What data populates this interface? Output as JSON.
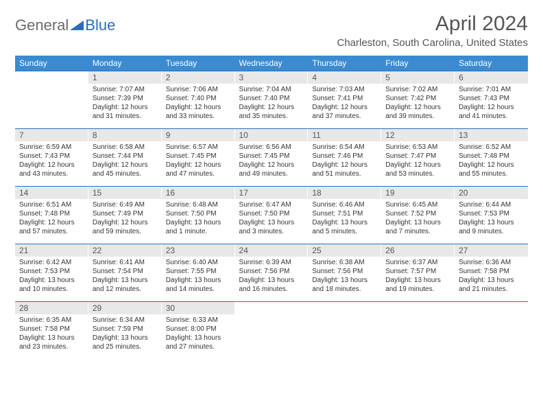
{
  "logo": {
    "part1": "General",
    "part2": "Blue"
  },
  "title": "April 2024",
  "location": "Charleston, South Carolina, United States",
  "colors": {
    "header_bg": "#3b8bd1",
    "header_text": "#ffffff",
    "daynum_bg": "#e8e8e8",
    "border": "#2a6eb8",
    "logo_blue": "#2a6eb8",
    "text": "#333333"
  },
  "day_headers": [
    "Sunday",
    "Monday",
    "Tuesday",
    "Wednesday",
    "Thursday",
    "Friday",
    "Saturday"
  ],
  "weeks": [
    [
      null,
      {
        "n": "1",
        "sr": "Sunrise: 7:07 AM",
        "ss": "Sunset: 7:39 PM",
        "dl": "Daylight: 12 hours and 31 minutes."
      },
      {
        "n": "2",
        "sr": "Sunrise: 7:06 AM",
        "ss": "Sunset: 7:40 PM",
        "dl": "Daylight: 12 hours and 33 minutes."
      },
      {
        "n": "3",
        "sr": "Sunrise: 7:04 AM",
        "ss": "Sunset: 7:40 PM",
        "dl": "Daylight: 12 hours and 35 minutes."
      },
      {
        "n": "4",
        "sr": "Sunrise: 7:03 AM",
        "ss": "Sunset: 7:41 PM",
        "dl": "Daylight: 12 hours and 37 minutes."
      },
      {
        "n": "5",
        "sr": "Sunrise: 7:02 AM",
        "ss": "Sunset: 7:42 PM",
        "dl": "Daylight: 12 hours and 39 minutes."
      },
      {
        "n": "6",
        "sr": "Sunrise: 7:01 AM",
        "ss": "Sunset: 7:43 PM",
        "dl": "Daylight: 12 hours and 41 minutes."
      }
    ],
    [
      {
        "n": "7",
        "sr": "Sunrise: 6:59 AM",
        "ss": "Sunset: 7:43 PM",
        "dl": "Daylight: 12 hours and 43 minutes."
      },
      {
        "n": "8",
        "sr": "Sunrise: 6:58 AM",
        "ss": "Sunset: 7:44 PM",
        "dl": "Daylight: 12 hours and 45 minutes."
      },
      {
        "n": "9",
        "sr": "Sunrise: 6:57 AM",
        "ss": "Sunset: 7:45 PM",
        "dl": "Daylight: 12 hours and 47 minutes."
      },
      {
        "n": "10",
        "sr": "Sunrise: 6:56 AM",
        "ss": "Sunset: 7:45 PM",
        "dl": "Daylight: 12 hours and 49 minutes."
      },
      {
        "n": "11",
        "sr": "Sunrise: 6:54 AM",
        "ss": "Sunset: 7:46 PM",
        "dl": "Daylight: 12 hours and 51 minutes."
      },
      {
        "n": "12",
        "sr": "Sunrise: 6:53 AM",
        "ss": "Sunset: 7:47 PM",
        "dl": "Daylight: 12 hours and 53 minutes."
      },
      {
        "n": "13",
        "sr": "Sunrise: 6:52 AM",
        "ss": "Sunset: 7:48 PM",
        "dl": "Daylight: 12 hours and 55 minutes."
      }
    ],
    [
      {
        "n": "14",
        "sr": "Sunrise: 6:51 AM",
        "ss": "Sunset: 7:48 PM",
        "dl": "Daylight: 12 hours and 57 minutes."
      },
      {
        "n": "15",
        "sr": "Sunrise: 6:49 AM",
        "ss": "Sunset: 7:49 PM",
        "dl": "Daylight: 12 hours and 59 minutes."
      },
      {
        "n": "16",
        "sr": "Sunrise: 6:48 AM",
        "ss": "Sunset: 7:50 PM",
        "dl": "Daylight: 13 hours and 1 minute."
      },
      {
        "n": "17",
        "sr": "Sunrise: 6:47 AM",
        "ss": "Sunset: 7:50 PM",
        "dl": "Daylight: 13 hours and 3 minutes."
      },
      {
        "n": "18",
        "sr": "Sunrise: 6:46 AM",
        "ss": "Sunset: 7:51 PM",
        "dl": "Daylight: 13 hours and 5 minutes."
      },
      {
        "n": "19",
        "sr": "Sunrise: 6:45 AM",
        "ss": "Sunset: 7:52 PM",
        "dl": "Daylight: 13 hours and 7 minutes."
      },
      {
        "n": "20",
        "sr": "Sunrise: 6:44 AM",
        "ss": "Sunset: 7:53 PM",
        "dl": "Daylight: 13 hours and 9 minutes."
      }
    ],
    [
      {
        "n": "21",
        "sr": "Sunrise: 6:42 AM",
        "ss": "Sunset: 7:53 PM",
        "dl": "Daylight: 13 hours and 10 minutes."
      },
      {
        "n": "22",
        "sr": "Sunrise: 6:41 AM",
        "ss": "Sunset: 7:54 PM",
        "dl": "Daylight: 13 hours and 12 minutes."
      },
      {
        "n": "23",
        "sr": "Sunrise: 6:40 AM",
        "ss": "Sunset: 7:55 PM",
        "dl": "Daylight: 13 hours and 14 minutes."
      },
      {
        "n": "24",
        "sr": "Sunrise: 6:39 AM",
        "ss": "Sunset: 7:56 PM",
        "dl": "Daylight: 13 hours and 16 minutes."
      },
      {
        "n": "25",
        "sr": "Sunrise: 6:38 AM",
        "ss": "Sunset: 7:56 PM",
        "dl": "Daylight: 13 hours and 18 minutes."
      },
      {
        "n": "26",
        "sr": "Sunrise: 6:37 AM",
        "ss": "Sunset: 7:57 PM",
        "dl": "Daylight: 13 hours and 19 minutes."
      },
      {
        "n": "27",
        "sr": "Sunrise: 6:36 AM",
        "ss": "Sunset: 7:58 PM",
        "dl": "Daylight: 13 hours and 21 minutes."
      }
    ],
    [
      {
        "n": "28",
        "sr": "Sunrise: 6:35 AM",
        "ss": "Sunset: 7:58 PM",
        "dl": "Daylight: 13 hours and 23 minutes."
      },
      {
        "n": "29",
        "sr": "Sunrise: 6:34 AM",
        "ss": "Sunset: 7:59 PM",
        "dl": "Daylight: 13 hours and 25 minutes."
      },
      {
        "n": "30",
        "sr": "Sunrise: 6:33 AM",
        "ss": "Sunset: 8:00 PM",
        "dl": "Daylight: 13 hours and 27 minutes."
      },
      null,
      null,
      null,
      null
    ]
  ]
}
